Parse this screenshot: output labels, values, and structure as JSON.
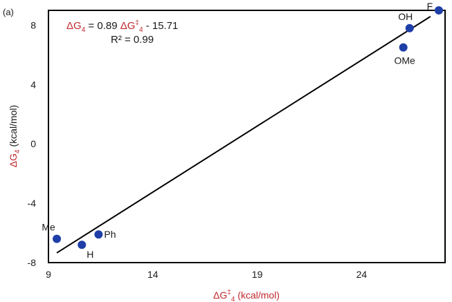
{
  "panel_label": "(a)",
  "colors": {
    "accent": "#c0282d",
    "point": "#1f3fa8",
    "text": "#1a1a1a",
    "line": "#000000"
  },
  "equation": {
    "lhs": "ΔG",
    "lhs_sub": "4",
    "eq_mid": " = 0.89 ",
    "rhs_sym": "ΔG",
    "rhs_sup": "‡",
    "rhs_sub": "4",
    "eq_end": " - 15.71",
    "r2": "R² = 0.99"
  },
  "chart_data": {
    "type": "scatter",
    "xlabel": {
      "main": "ΔG",
      "sup": "‡",
      "sub": "4",
      "unit": " (kcal/mol)"
    },
    "ylabel": {
      "main": "ΔG",
      "sub": "4",
      "unit": " (kcal/mol)"
    },
    "xlim": [
      9,
      28
    ],
    "ylim": [
      -8,
      9
    ],
    "xticks": [
      9,
      14,
      19,
      24
    ],
    "yticks": [
      -8,
      -4,
      0,
      4,
      8
    ],
    "grid": false,
    "points": [
      {
        "label": "Me",
        "x": 9.4,
        "y": -6.4
      },
      {
        "label": "H",
        "x": 10.6,
        "y": -6.8
      },
      {
        "label": "Ph",
        "x": 11.4,
        "y": -6.1
      },
      {
        "label": "OMe",
        "x": 26.0,
        "y": 6.5
      },
      {
        "label": "OH",
        "x": 26.3,
        "y": 7.8
      },
      {
        "label": "F",
        "x": 27.7,
        "y": 9.0
      }
    ],
    "fit": {
      "slope": 0.89,
      "intercept": -15.71,
      "x_range": [
        9.4,
        27.3
      ]
    }
  }
}
